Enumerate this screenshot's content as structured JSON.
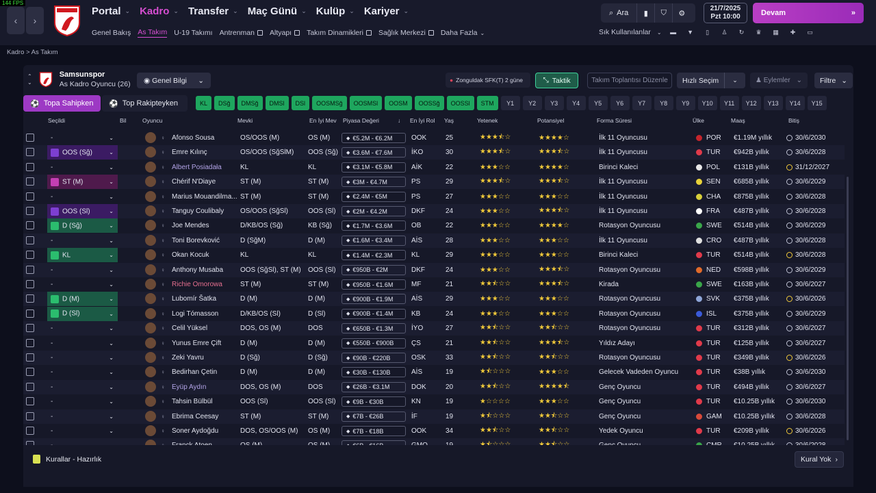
{
  "fps": "144 FPS",
  "nav": {
    "main": [
      {
        "label": "Portal",
        "active": false
      },
      {
        "label": "Kadro",
        "active": true
      },
      {
        "label": "Transfer",
        "active": false
      },
      {
        "label": "Maç Günü",
        "active": false
      },
      {
        "label": "Kulüp",
        "active": false
      },
      {
        "label": "Kariyer",
        "active": false
      }
    ],
    "sub": [
      {
        "label": "Genel Bakış",
        "ext": false,
        "active": false
      },
      {
        "label": "As Takım",
        "ext": false,
        "active": true
      },
      {
        "label": "U-19 Takımı",
        "ext": false,
        "active": false
      },
      {
        "label": "Antrenman",
        "ext": true,
        "active": false
      },
      {
        "label": "Altyapı",
        "ext": true,
        "active": false
      },
      {
        "label": "Takım Dinamikleri",
        "ext": true,
        "active": false
      },
      {
        "label": "Sağlık Merkezi",
        "ext": true,
        "active": false
      },
      {
        "label": "Daha Fazla",
        "ext": false,
        "active": false
      }
    ]
  },
  "search_label": "Ara",
  "date": {
    "line1": "21/7/2025",
    "line2": "Pzt  10:00"
  },
  "continue_label": "Devam",
  "shortcuts_label": "Sık Kullanılanlar",
  "breadcrumb": {
    "a": "Kadro",
    "b": "As Takım"
  },
  "club": {
    "name": "Samsunspor",
    "sub": "As Kadro Oyuncu (26)"
  },
  "view_select": "Genel Bilgi",
  "notice": "Zonguldak SFK(T) 2 güne",
  "btn_taktik": "Taktik",
  "btn_toplanti": "Takım Toplantısı Düzenle",
  "btn_hizli": "Hızlı Seçim",
  "btn_eylemler": "Eylemler",
  "btn_filtre": "Filtre",
  "tab_on": "Topa Sahipken",
  "tab_off": "Top Rakipteyken",
  "chips_green": [
    "KL",
    "DSğ",
    "DMSğ",
    "DMSl",
    "DSl",
    "OOSMSğ",
    "OOSMSl",
    "OOSM",
    "OOSSğ",
    "OOSSl",
    "STM"
  ],
  "chips_dark": [
    "Y1",
    "Y2",
    "Y3",
    "Y4",
    "Y5",
    "Y6",
    "Y7",
    "Y8",
    "Y9",
    "Y10",
    "Y11",
    "Y12",
    "Y13",
    "Y14",
    "Y15"
  ],
  "headers": {
    "secildi": "Seçildi",
    "bil": "Bil",
    "oyuncu": "Oyuncu",
    "mevki": "Mevki",
    "eim": "En İyi Mev",
    "piyasa": "Piyasa Değeri",
    "rol": "En İyi Rol",
    "yas": "Yaş",
    "yetenek": "Yetenek",
    "potansiyel": "Potansiyel",
    "forma": "Forma Süresi",
    "ulke": "Ülke",
    "maas": "Maaş",
    "bitis": "Bitiş"
  },
  "rows": [
    {
      "sel": "-",
      "selc": "",
      "name": "Afonso Sousa",
      "nc": "",
      "pos": "OS/OOS (M)",
      "best": "OS (M)",
      "val": "€5.2M - €6.2M",
      "role": "OOK",
      "age": "25",
      "ab": 3.5,
      "pot": 4,
      "time": "İlk 11 Oyuncusu",
      "nat": "POR",
      "fc": "#c5252c",
      "wage": "€1.19M yıllık",
      "end": "30/6/2030",
      "ey": false
    },
    {
      "sel": "OOS (Sğ)",
      "selc": "v",
      "name": "Emre Kılınç",
      "nc": "",
      "pos": "OS/OOS (SğSlM)",
      "best": "OOS (Sğ)",
      "val": "€3.6M - €7.6M",
      "role": "İKO",
      "age": "30",
      "ab": 3.5,
      "pot": 3.5,
      "time": "İlk 11 Oyuncusu",
      "nat": "TUR",
      "fc": "#e03a4a",
      "wage": "€942B yıllık",
      "end": "30/6/2028",
      "ey": false
    },
    {
      "sel": "-",
      "selc": "",
      "name": "Albert Posiadała",
      "nc": "link",
      "pos": "KL",
      "best": "KL",
      "val": "€3.1M - €5.8M",
      "role": "AİK",
      "age": "22",
      "ab": 3,
      "pot": 4,
      "time": "Birinci Kaleci",
      "nat": "POL",
      "fc": "#e8e8e8",
      "wage": "€131B yıllık",
      "end": "31/12/2027",
      "ey": true
    },
    {
      "sel": "ST (M)",
      "selc": "p",
      "name": "Chérif N'Diaye",
      "nc": "",
      "pos": "ST (M)",
      "best": "ST (M)",
      "val": "€3M - €4.7M",
      "role": "PS",
      "age": "29",
      "ab": 3.5,
      "pot": 3.5,
      "time": "İlk 11 Oyuncusu",
      "nat": "SEN",
      "fc": "#e8d23a",
      "wage": "€685B yıllık",
      "end": "30/6/2029",
      "ey": false
    },
    {
      "sel": "-",
      "selc": "",
      "name": "Marius Mouandilma...",
      "nc": "",
      "pos": "ST (M)",
      "best": "ST (M)",
      "val": "€2.4M - €5M",
      "role": "PS",
      "age": "27",
      "ab": 3,
      "pot": 3,
      "time": "İlk 11 Oyuncusu",
      "nat": "CHA",
      "fc": "#d8cf3a",
      "wage": "€875B yıllık",
      "end": "30/6/2028",
      "ey": false
    },
    {
      "sel": "OOS (Sl)",
      "selc": "v",
      "name": "Tanguy Coulibaly",
      "nc": "",
      "pos": "OS/OOS (SğSl)",
      "best": "OOS (Sl)",
      "val": "€2M - €4.2M",
      "role": "DKF",
      "age": "24",
      "ab": 3,
      "pot": 3.5,
      "time": "İlk 11 Oyuncusu",
      "nat": "FRA",
      "fc": "#ffffff",
      "wage": "€487B yıllık",
      "end": "30/6/2028",
      "ey": false
    },
    {
      "sel": "D (Sğ)",
      "selc": "g",
      "name": "Joe Mendes",
      "nc": "",
      "pos": "D/KB/OS (Sğ)",
      "best": "KB (Sğ)",
      "val": "€1.7M - €3.6M",
      "role": "OB",
      "age": "22",
      "ab": 3,
      "pot": 4,
      "time": "Rotasyon Oyuncusu",
      "nat": "SWE",
      "fc": "#3aa64a",
      "wage": "€514B yıllık",
      "end": "30/6/2029",
      "ey": false
    },
    {
      "sel": "-",
      "selc": "",
      "name": "Toni Borevković",
      "nc": "",
      "pos": "D (SğM)",
      "best": "D (M)",
      "val": "€1.6M - €3.4M",
      "role": "AİS",
      "age": "28",
      "ab": 3,
      "pot": 3,
      "time": "İlk 11 Oyuncusu",
      "nat": "CRO",
      "fc": "#e0e0e0",
      "wage": "€487B yıllık",
      "end": "30/6/2028",
      "ey": false
    },
    {
      "sel": "KL",
      "selc": "g",
      "name": "Okan Kocuk",
      "nc": "",
      "pos": "KL",
      "best": "KL",
      "val": "€1.4M - €2.3M",
      "role": "KL",
      "age": "29",
      "ab": 3,
      "pot": 3,
      "time": "Birinci Kaleci",
      "nat": "TUR",
      "fc": "#e03a4a",
      "wage": "€514B yıllık",
      "end": "30/6/2028",
      "ey": true
    },
    {
      "sel": "-",
      "selc": "",
      "name": "Anthony Musaba",
      "nc": "",
      "pos": "OOS (SğSl), ST (M)",
      "best": "OOS (Sl)",
      "val": "€950B - €2M",
      "role": "DKF",
      "age": "24",
      "ab": 3,
      "pot": 3.5,
      "time": "Rotasyon Oyuncusu",
      "nat": "NED",
      "fc": "#e06a2a",
      "wage": "€598B yıllık",
      "end": "30/6/2029",
      "ey": false
    },
    {
      "sel": "-",
      "selc": "",
      "name": "Richie Omorowa",
      "nc": "red",
      "pos": "ST (M)",
      "best": "ST (M)",
      "val": "€950B - €1.6M",
      "role": "MF",
      "age": "21",
      "ab": 2.5,
      "pot": 3.5,
      "time": "Kirada",
      "nat": "SWE",
      "fc": "#3aa64a",
      "wage": "€163B yıllık",
      "end": "30/6/2027",
      "ey": false
    },
    {
      "sel": "D (M)",
      "selc": "g",
      "name": "Lubomír Šatka",
      "nc": "",
      "pos": "D (M)",
      "best": "D (M)",
      "val": "€900B - €1.9M",
      "role": "AİS",
      "age": "29",
      "ab": 3,
      "pot": 3,
      "time": "Rotasyon Oyuncusu",
      "nat": "SVK",
      "fc": "#8fa6d8",
      "wage": "€375B yıllık",
      "end": "30/6/2026",
      "ey": true
    },
    {
      "sel": "D (Sl)",
      "selc": "g",
      "name": "Logi Tómasson",
      "nc": "",
      "pos": "D/KB/OS (Sl)",
      "best": "D (Sl)",
      "val": "€900B - €1.4M",
      "role": "KB",
      "age": "24",
      "ab": 3,
      "pot": 3,
      "time": "Rotasyon Oyuncusu",
      "nat": "ISL",
      "fc": "#3a5ad8",
      "wage": "€375B yıllık",
      "end": "30/6/2029",
      "ey": false
    },
    {
      "sel": "-",
      "selc": "",
      "name": "Celil Yüksel",
      "nc": "",
      "pos": "DOS, OS (M)",
      "best": "DOS",
      "val": "€650B - €1.3M",
      "role": "İYO",
      "age": "27",
      "ab": 2.5,
      "pot": 2.5,
      "time": "Rotasyon Oyuncusu",
      "nat": "TUR",
      "fc": "#e03a4a",
      "wage": "€312B yıllık",
      "end": "30/6/2027",
      "ey": false
    },
    {
      "sel": "-",
      "selc": "",
      "name": "Yunus Emre Çift",
      "nc": "",
      "pos": "D (M)",
      "best": "D (M)",
      "val": "€550B - €900B",
      "role": "ÇS",
      "age": "21",
      "ab": 2.5,
      "pot": 3.5,
      "time": "Yıldız Adayı",
      "nat": "TUR",
      "fc": "#e03a4a",
      "wage": "€125B yıllık",
      "end": "30/6/2027",
      "ey": false
    },
    {
      "sel": "-",
      "selc": "",
      "name": "Zeki Yavru",
      "nc": "",
      "pos": "D (Sğ)",
      "best": "D (Sğ)",
      "val": "€90B - €220B",
      "role": "OSK",
      "age": "33",
      "ab": 2.5,
      "pot": 2.5,
      "time": "Rotasyon Oyuncusu",
      "nat": "TUR",
      "fc": "#e03a4a",
      "wage": "€349B yıllık",
      "end": "30/6/2026",
      "ey": true
    },
    {
      "sel": "-",
      "selc": "",
      "name": "Bedirhan Çetin",
      "nc": "",
      "pos": "D (M)",
      "best": "D (M)",
      "val": "€30B - €130B",
      "role": "AİS",
      "age": "19",
      "ab": 1.5,
      "pot": 3,
      "time": "Gelecek Vadeden Oyuncu",
      "nat": "TUR",
      "fc": "#e03a4a",
      "wage": "€38B yıllık",
      "end": "30/6/2030",
      "ey": false
    },
    {
      "sel": "-",
      "selc": "",
      "name": "Eyüp Aydın",
      "nc": "link",
      "pos": "DOS, OS (M)",
      "best": "DOS",
      "val": "€26B - €3.1M",
      "role": "DOK",
      "age": "20",
      "ab": 2.5,
      "pot": 4.5,
      "time": "Genç Oyuncu",
      "nat": "TUR",
      "fc": "#e03a4a",
      "wage": "€494B yıllık",
      "end": "30/6/2027",
      "ey": false
    },
    {
      "sel": "-",
      "selc": "",
      "name": "Tahsin Bülbül",
      "nc": "",
      "pos": "OOS (Sl)",
      "best": "OOS (Sl)",
      "val": "€9B - €30B",
      "role": "KN",
      "age": "19",
      "ab": 1,
      "pot": 3,
      "time": "Genç Oyuncu",
      "nat": "TUR",
      "fc": "#e03a4a",
      "wage": "€10.25B yıllık",
      "end": "30/6/2030",
      "ey": false
    },
    {
      "sel": "-",
      "selc": "",
      "name": "Ebrima Ceesay",
      "nc": "",
      "pos": "ST (M)",
      "best": "ST (M)",
      "val": "€7B - €26B",
      "role": "İF",
      "age": "19",
      "ab": 1.5,
      "pot": 2.5,
      "time": "Genç Oyuncu",
      "nat": "GAM",
      "fc": "#d84a3a",
      "wage": "€10.25B yıllık",
      "end": "30/6/2028",
      "ey": false
    },
    {
      "sel": "-",
      "selc": "",
      "name": "Soner Aydoğdu",
      "nc": "",
      "pos": "DOS, OS/OOS (M)",
      "best": "OS (M)",
      "val": "€7B - €18B",
      "role": "OOK",
      "age": "34",
      "ab": 2.5,
      "pot": 2.5,
      "time": "Yedek Oyuncu",
      "nat": "TUR",
      "fc": "#e03a4a",
      "wage": "€209B yıllık",
      "end": "30/6/2026",
      "ey": true
    },
    {
      "sel": "-",
      "selc": "",
      "name": "Franck Atoen",
      "nc": "",
      "pos": "OS (M)",
      "best": "OS (M)",
      "val": "€6B - €16B",
      "role": "GMO",
      "age": "19",
      "ab": 1.5,
      "pot": 2.5,
      "time": "Genç Oyuncu",
      "nat": "CMR",
      "fc": "#3aa64a",
      "wage": "€10.25B yıllık",
      "end": "30/6/2028",
      "ey": false
    }
  ],
  "footer": {
    "rules": "Kurallar - Hazırlık",
    "norule": "Kural Yok"
  }
}
